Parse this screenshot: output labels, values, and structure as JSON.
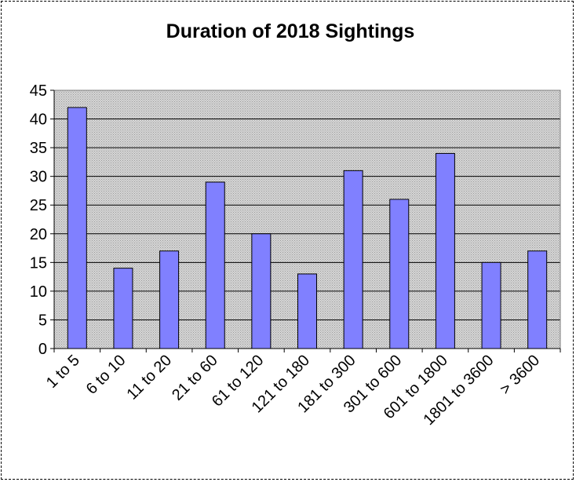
{
  "chart_data": {
    "type": "bar",
    "title": "Duration of 2018 Sightings",
    "xlabel": "",
    "ylabel": "",
    "categories": [
      "1 to 5",
      "6 to 10",
      "11 to 20",
      "21 to 60",
      "61 to 120",
      "121 to 180",
      "181 to 300",
      "301 to 600",
      "601 to 1800",
      "1801 to 3600",
      "> 3600"
    ],
    "values": [
      42,
      14,
      17,
      29,
      20,
      13,
      31,
      26,
      34,
      15,
      17
    ],
    "ylim": [
      0,
      45
    ],
    "yticks": [
      0,
      5,
      10,
      15,
      20,
      25,
      30,
      35,
      40,
      45
    ],
    "grid": true,
    "legend": "none",
    "colors": {
      "bar_fill": "#8080ff",
      "bar_stroke": "#000000",
      "plot_background": "#c0c0c0",
      "gridline": "#000000"
    }
  }
}
